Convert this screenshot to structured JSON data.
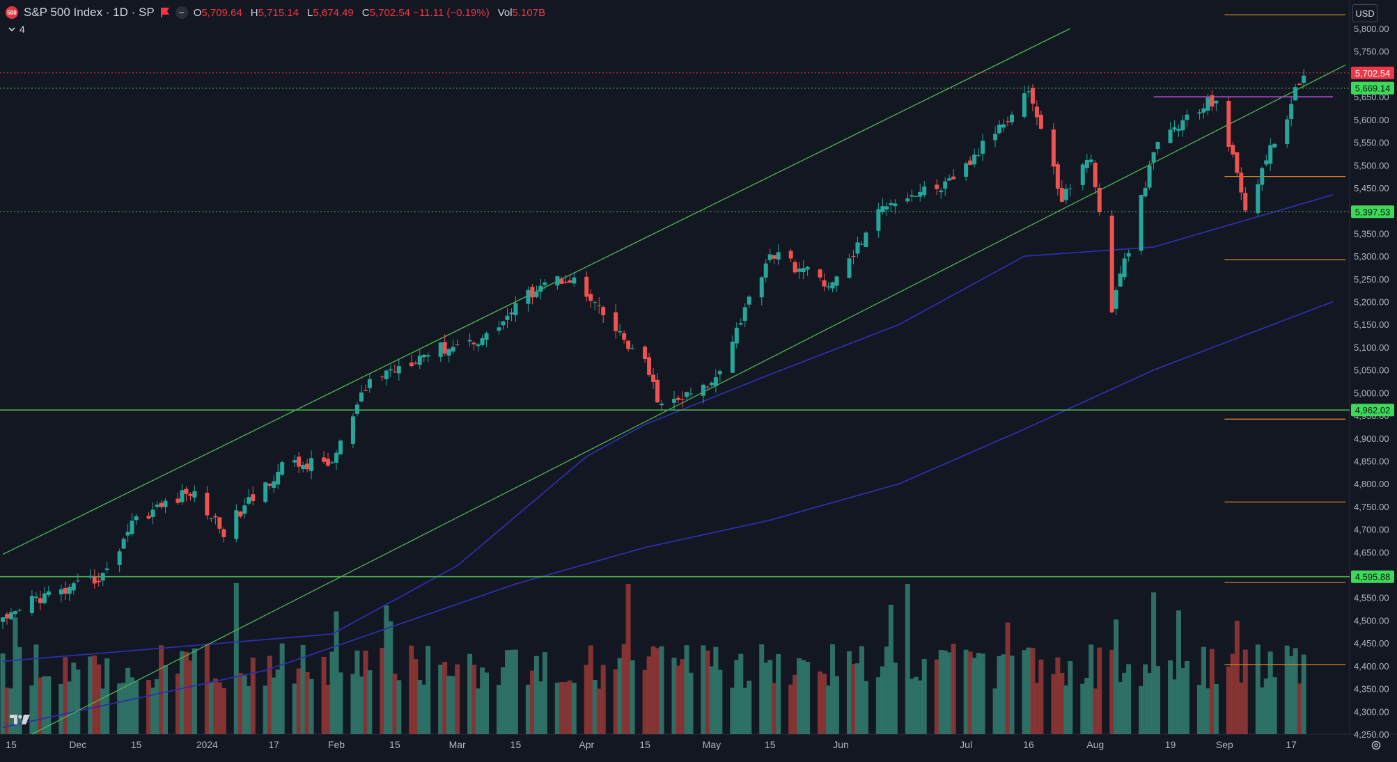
{
  "header": {
    "symbol_badge": "500",
    "title": "S&P 500 Index · 1D · SP",
    "ohlc": [
      {
        "label": "O",
        "value": "5,709.64"
      },
      {
        "label": "H",
        "value": "5,715.14"
      },
      {
        "label": "L",
        "value": "5,674.49"
      },
      {
        "label": "C",
        "value": "5,702.54 −11.11 (−0.19%)"
      },
      {
        "label": "Vol",
        "value": "5.107B"
      }
    ],
    "indicator_count": "4",
    "currency": "USD"
  },
  "icons": {
    "flag": "flag-icon",
    "collapse": "chevron-down-icon",
    "minus": "minus-icon",
    "logo": "tradingview-logo",
    "settings": "gear-icon"
  },
  "colors": {
    "background": "#131722",
    "up": "#26a69a",
    "down": "#ef5350",
    "vol_up": "#2e7469",
    "vol_down": "#8a3535",
    "trend": "#4caf50",
    "ma": "#2d2fa8",
    "fib": "#d98326",
    "resistance": "#b44fd4",
    "last_price": "#f23645",
    "level_label": "#3ed95a"
  },
  "chart_data": {
    "type": "candlestick",
    "title": "S&P 500 Index · 1D · SP",
    "y_axis": {
      "min": 4250,
      "max": 5800,
      "ticks": [
        4250,
        4300,
        4350,
        4400,
        4450,
        4500,
        4550,
        4600,
        4650,
        4700,
        4750,
        4800,
        4850,
        4900,
        4950,
        5000,
        5050,
        5100,
        5150,
        5200,
        5250,
        5300,
        5350,
        5400,
        5450,
        5500,
        5550,
        5600,
        5650,
        5700,
        5750,
        5800
      ],
      "tick_labels": [
        "4,250.00",
        "4,300.00",
        "4,350.00",
        "4,400.00",
        "4,450.00",
        "4,500.00",
        "4,550.00",
        "4,600.00",
        "4,650.00",
        "4,700.00",
        "4,750.00",
        "4,800.00",
        "4,850.00",
        "4,900.00",
        "4,950.00",
        "5,000.00",
        "5,050.00",
        "5,100.00",
        "5,150.00",
        "5,200.00",
        "5,250.00",
        "5,300.00",
        "5,350.00",
        "5,400.00",
        "5,450.00",
        "5,500.00",
        "5,550.00",
        "5,600.00",
        "5,650.00",
        "5,700.00",
        "5,750.00",
        "5,800.00"
      ]
    },
    "x_axis": {
      "range": [
        "2023-11-13",
        "2024-09-30"
      ],
      "ticks": [
        {
          "date": "2023-11-15",
          "label": "15"
        },
        {
          "date": "2023-12-01",
          "label": "Dec"
        },
        {
          "date": "2023-12-15",
          "label": "15"
        },
        {
          "date": "2024-01-01",
          "label": "2024"
        },
        {
          "date": "2024-01-17",
          "label": "17"
        },
        {
          "date": "2024-02-01",
          "label": "Feb"
        },
        {
          "date": "2024-02-15",
          "label": "15"
        },
        {
          "date": "2024-03-01",
          "label": "Mar"
        },
        {
          "date": "2024-03-15",
          "label": "15"
        },
        {
          "date": "2024-04-01",
          "label": "Apr"
        },
        {
          "date": "2024-04-15",
          "label": "15"
        },
        {
          "date": "2024-05-01",
          "label": "May"
        },
        {
          "date": "2024-05-15",
          "label": "15"
        },
        {
          "date": "2024-06-01",
          "label": "Jun"
        },
        {
          "date": "2024-07-01",
          "label": "Jul"
        },
        {
          "date": "2024-07-16",
          "label": "16"
        },
        {
          "date": "2024-08-01",
          "label": "Aug"
        },
        {
          "date": "2024-08-19",
          "label": "19"
        },
        {
          "date": "2024-09-01",
          "label": "Sep"
        },
        {
          "date": "2024-09-17",
          "label": "17"
        }
      ]
    },
    "closes": [
      {
        "date": "2023-11-14",
        "close": 4495
      },
      {
        "date": "2023-11-20",
        "close": 4547
      },
      {
        "date": "2023-11-30",
        "close": 4568
      },
      {
        "date": "2023-12-08",
        "close": 4604
      },
      {
        "date": "2023-12-14",
        "close": 4719
      },
      {
        "date": "2023-12-28",
        "close": 4783
      },
      {
        "date": "2024-01-05",
        "close": 4697
      },
      {
        "date": "2024-01-19",
        "close": 4839
      },
      {
        "date": "2024-01-31",
        "close": 4846
      },
      {
        "date": "2024-02-09",
        "close": 5026
      },
      {
        "date": "2024-02-22",
        "close": 5087
      },
      {
        "date": "2024-03-08",
        "close": 5123
      },
      {
        "date": "2024-03-21",
        "close": 5241
      },
      {
        "date": "2024-03-28",
        "close": 5254
      },
      {
        "date": "2024-04-15",
        "close": 5061
      },
      {
        "date": "2024-04-19",
        "close": 4967
      },
      {
        "date": "2024-05-01",
        "close": 5018
      },
      {
        "date": "2024-05-15",
        "close": 5308
      },
      {
        "date": "2024-05-30",
        "close": 5235
      },
      {
        "date": "2024-06-12",
        "close": 5421
      },
      {
        "date": "2024-06-28",
        "close": 5460
      },
      {
        "date": "2024-07-16",
        "close": 5667
      },
      {
        "date": "2024-07-24",
        "close": 5427
      },
      {
        "date": "2024-07-31",
        "close": 5522
      },
      {
        "date": "2024-08-05",
        "close": 5186
      },
      {
        "date": "2024-08-16",
        "close": 5554
      },
      {
        "date": "2024-08-30",
        "close": 5648
      },
      {
        "date": "2024-09-06",
        "close": 5408
      },
      {
        "date": "2024-09-17",
        "close": 5634
      },
      {
        "date": "2024-09-20",
        "close": 5702
      }
    ],
    "last_price": {
      "value": 5702.54,
      "label": "5,702.54"
    },
    "horizontal_levels": [
      {
        "value": 5669.14,
        "label": "5,669.14"
      },
      {
        "value": 5397.53,
        "label": "5,397.53"
      },
      {
        "value": 4962.02,
        "label": "4,962.02"
      },
      {
        "value": 4595.88,
        "label": "4,595.88"
      }
    ],
    "resistance_line": {
      "value": 5650,
      "from": "2024-08-15",
      "to": "2024-09-27"
    },
    "fib_levels": {
      "from": "2024-09-01",
      "to": "2024-09-30",
      "values": [
        5830,
        5475,
        5292,
        4942,
        4760,
        4583,
        4403
      ]
    },
    "trend_channel": {
      "upper": [
        {
          "date": "2023-11-13",
          "close": 4645
        },
        {
          "date": "2024-07-26",
          "close": 5800
        }
      ],
      "lower": [
        {
          "date": "2023-11-20",
          "close": 4250
        },
        {
          "date": "2024-09-30",
          "close": 5720
        }
      ]
    },
    "moving_averages": [
      {
        "name": "MA50",
        "points": [
          {
            "date": "2023-11-13",
            "close": 4410
          },
          {
            "date": "2024-01-31",
            "close": 4470
          },
          {
            "date": "2024-03-01",
            "close": 4620
          },
          {
            "date": "2024-04-01",
            "close": 4860
          },
          {
            "date": "2024-04-15",
            "close": 4930
          },
          {
            "date": "2024-05-15",
            "close": 5040
          },
          {
            "date": "2024-06-15",
            "close": 5150
          },
          {
            "date": "2024-07-15",
            "close": 5300
          },
          {
            "date": "2024-08-15",
            "close": 5320
          },
          {
            "date": "2024-09-27",
            "close": 5435
          }
        ]
      },
      {
        "name": "MA200",
        "points": [
          {
            "date": "2023-11-13",
            "close": 4265
          },
          {
            "date": "2024-01-15",
            "close": 4390
          },
          {
            "date": "2024-03-15",
            "close": 4580
          },
          {
            "date": "2024-04-15",
            "close": 4660
          },
          {
            "date": "2024-05-15",
            "close": 4720
          },
          {
            "date": "2024-06-15",
            "close": 4800
          },
          {
            "date": "2024-07-15",
            "close": 4920
          },
          {
            "date": "2024-08-15",
            "close": 5050
          },
          {
            "date": "2024-09-27",
            "close": 5200
          }
        ]
      }
    ],
    "volume": {
      "baseline_value": 4250,
      "max_value": 4650,
      "last_label": "5.107B"
    }
  }
}
